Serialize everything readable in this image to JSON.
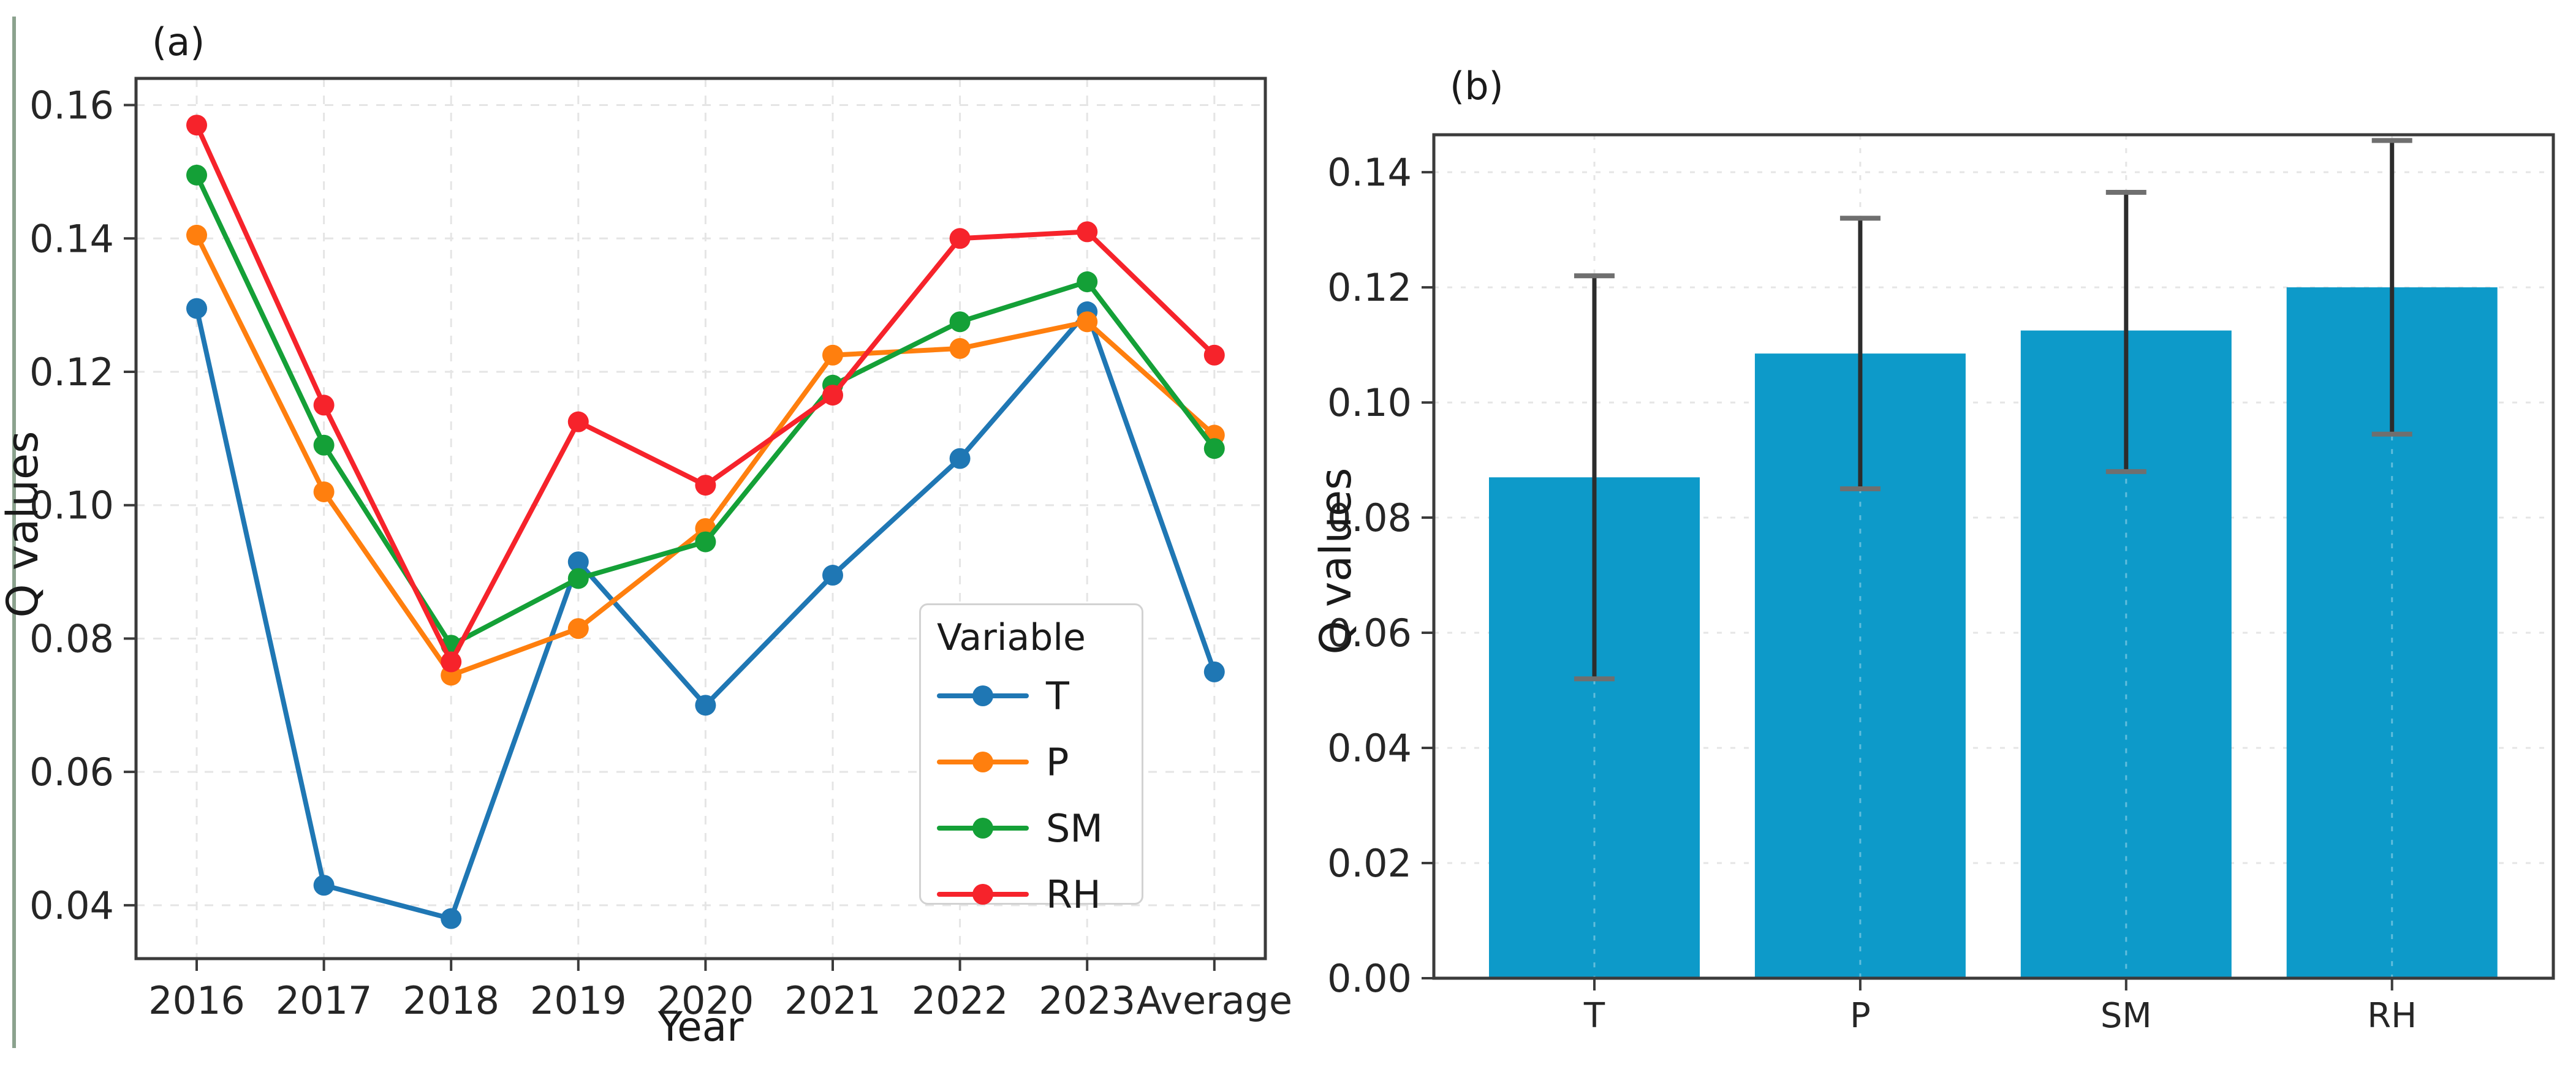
{
  "figure_caption_colors": {
    "accent_blue": "#1f77b4",
    "accent_orange": "#ff7f0e",
    "accent_green": "#14a037",
    "accent_red": "#f6232b",
    "bar_blue": "#0d9ac9",
    "grid_gray": "#e5e5e5",
    "spine_gray": "#3b3b3b",
    "page_border_green": "#8ba28e"
  },
  "chart_data": [
    {
      "type": "line",
      "panel_label": "(a)",
      "xlabel": "Year",
      "ylabel": "Q values",
      "legend_title": "Variable",
      "legend_position": "lower right inside",
      "grid": "dashed light gray, both axes",
      "categories": [
        "2016",
        "2017",
        "2018",
        "2019",
        "2020",
        "2021",
        "2022",
        "2023",
        "Average"
      ],
      "ytick_labels": [
        "0.04",
        "0.06",
        "0.08",
        "0.10",
        "0.12",
        "0.14",
        "0.16"
      ],
      "yticks": [
        0.04,
        0.06,
        0.08,
        0.1,
        0.12,
        0.14,
        0.16
      ],
      "ylim": [
        0.032,
        0.164
      ],
      "series": [
        {
          "name": "T",
          "color": "#1f77b4",
          "values": [
            0.1295,
            0.043,
            0.038,
            0.0915,
            0.07,
            0.0895,
            0.107,
            0.129,
            0.075
          ]
        },
        {
          "name": "P",
          "color": "#ff7f0e",
          "values": [
            0.1405,
            0.102,
            0.0745,
            0.0815,
            0.0965,
            0.1225,
            0.1235,
            0.1275,
            0.1105
          ]
        },
        {
          "name": "SM",
          "color": "#14a037",
          "values": [
            0.1495,
            0.109,
            0.079,
            0.089,
            0.0945,
            0.118,
            0.1275,
            0.1335,
            0.1085
          ]
        },
        {
          "name": "RH",
          "color": "#f6232b",
          "values": [
            0.157,
            0.115,
            0.0765,
            0.1125,
            0.103,
            0.1165,
            0.14,
            0.141,
            0.1225
          ]
        }
      ]
    },
    {
      "type": "bar",
      "panel_label": "(b)",
      "xlabel": "",
      "ylabel": "Q values",
      "grid": "dashed light gray",
      "categories": [
        "T",
        "P",
        "SM",
        "RH"
      ],
      "ytick_labels": [
        "0.00",
        "0.02",
        "0.04",
        "0.06",
        "0.08",
        "0.10",
        "0.12",
        "0.14"
      ],
      "yticks": [
        0.0,
        0.02,
        0.04,
        0.06,
        0.08,
        0.1,
        0.12,
        0.14
      ],
      "ylim": [
        0,
        0.1465
      ],
      "bar_color": "#0d9ac9",
      "values": [
        0.087,
        0.1085,
        0.1125,
        0.12
      ],
      "error_low": [
        0.052,
        0.085,
        0.088,
        0.0945
      ],
      "error_high": [
        0.122,
        0.132,
        0.1365,
        0.1455
      ]
    }
  ]
}
